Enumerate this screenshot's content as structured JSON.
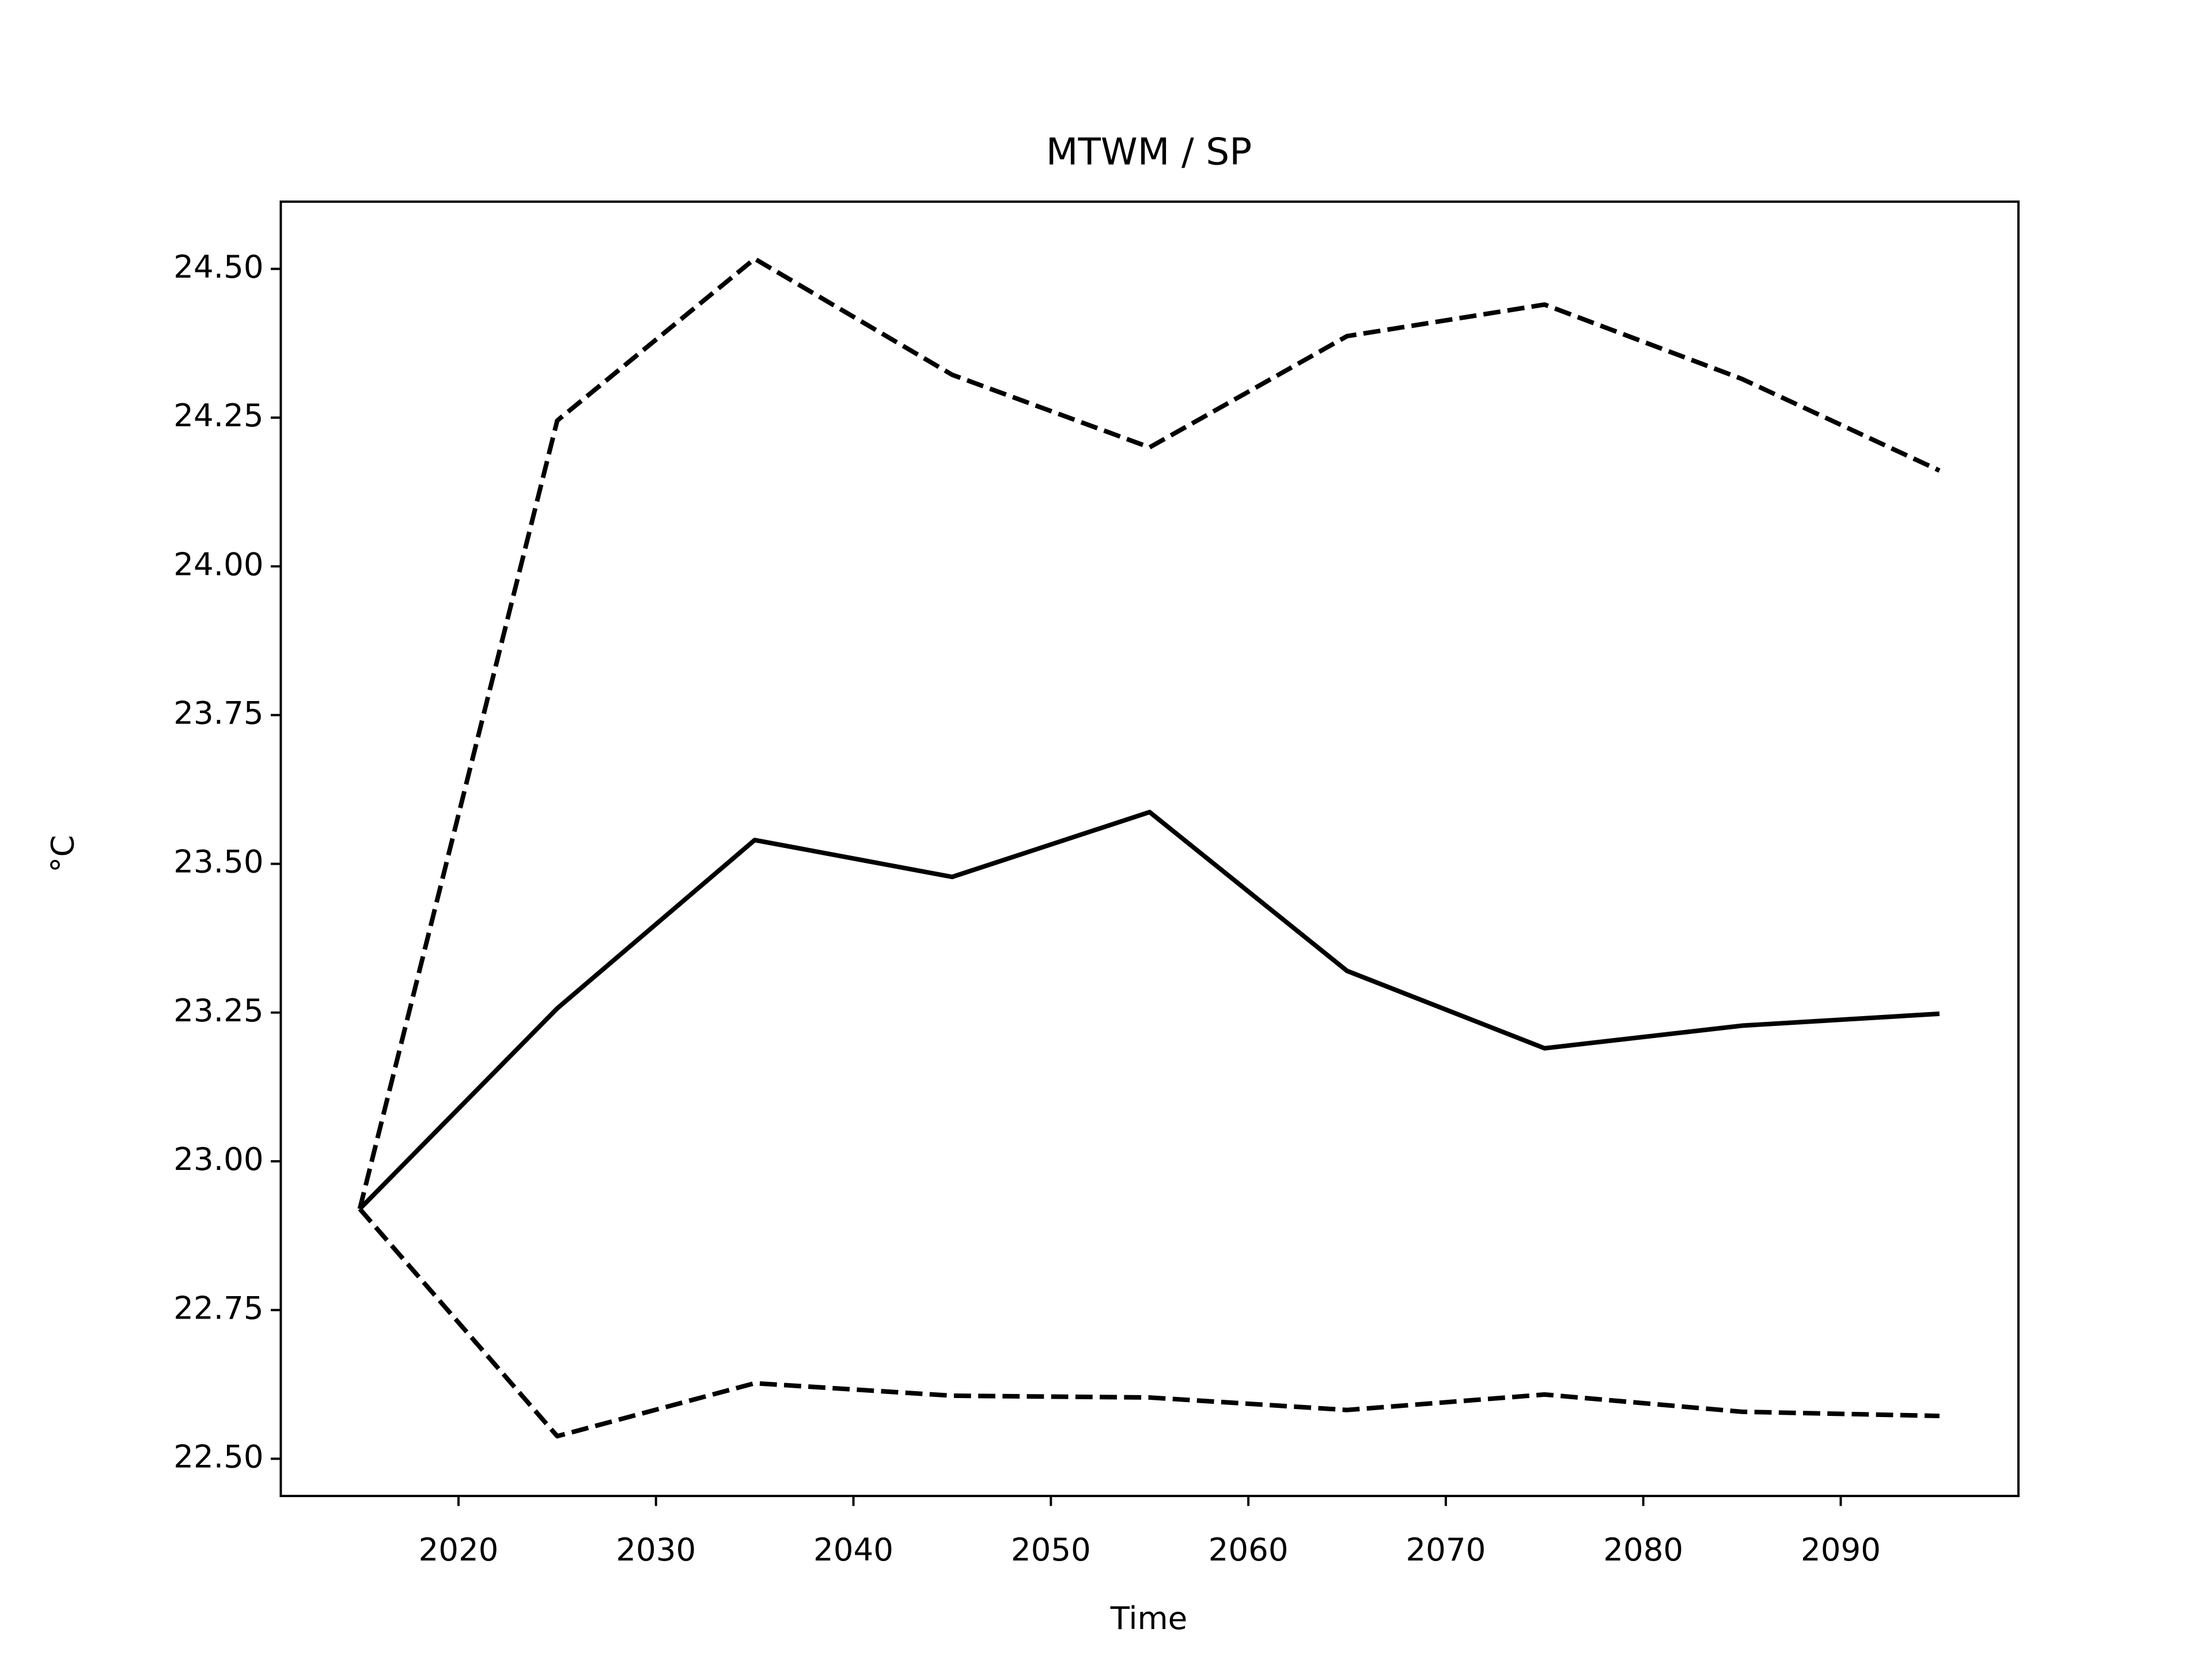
{
  "chart_data": {
    "type": "line",
    "title": "MTWM / SP",
    "xlabel": "Time",
    "ylabel": "°C",
    "x": [
      2015,
      2025,
      2035,
      2045,
      2055,
      2065,
      2075,
      2085,
      2095
    ],
    "series": [
      {
        "color": "#000000",
        "dash": "solid",
        "values": [
          22.92,
          23.257,
          23.54,
          23.478,
          23.587,
          23.32,
          23.19,
          23.228,
          23.248
        ]
      },
      {
        "color": "#000000",
        "dash": "dashed",
        "values": [
          22.92,
          24.245,
          24.517,
          24.322,
          24.2,
          24.387,
          24.44,
          24.315,
          24.161
        ]
      },
      {
        "color": "#000000",
        "dash": "dashed",
        "values": [
          22.92,
          22.538,
          22.627,
          22.606,
          22.603,
          22.582,
          22.608,
          22.579,
          22.572
        ]
      }
    ],
    "xlim": [
      2011,
      2099
    ],
    "ylim": [
      22.4375,
      24.613
    ],
    "xticks": [
      2020,
      2030,
      2040,
      2050,
      2060,
      2070,
      2080,
      2090
    ],
    "yticks": [
      {
        "value": 22.5,
        "label": "22.50"
      },
      {
        "value": 22.75,
        "label": "22.75"
      },
      {
        "value": 23.0,
        "label": "23.00"
      },
      {
        "value": 23.25,
        "label": "23.25"
      },
      {
        "value": 23.5,
        "label": "23.50"
      },
      {
        "value": 23.75,
        "label": "23.75"
      },
      {
        "value": 24.0,
        "label": "24.00"
      },
      {
        "value": 24.25,
        "label": "24.25"
      },
      {
        "value": 24.5,
        "label": "24.50"
      }
    ],
    "grid": false
  }
}
